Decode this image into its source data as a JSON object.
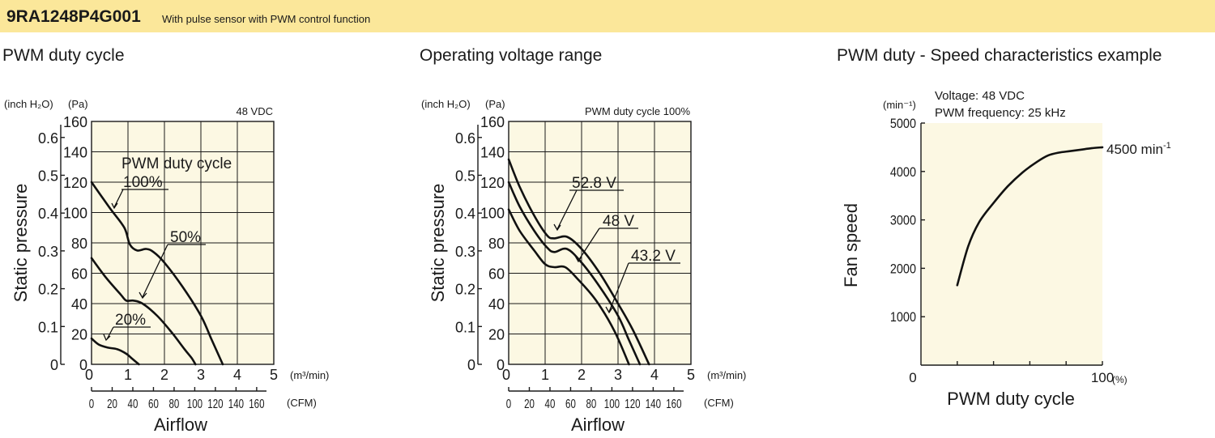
{
  "header": {
    "model": "9RA1248P4G001",
    "description": "With pulse sensor with PWM control function"
  },
  "chart_data": [
    {
      "type": "line",
      "title": "PWM duty cycle",
      "condition": "48 VDC",
      "xlabel": "Airflow",
      "x_unit": "(m³/min)",
      "x_unit_secondary": "(CFM)",
      "ylabel": "Static pressure",
      "y_unit": "(Pa)",
      "y_unit_secondary": "(inch H₂O)",
      "xlim": [
        0,
        5
      ],
      "ylim": [
        0,
        160
      ],
      "x_ticks": [
        "0",
        "1",
        "2",
        "3",
        "4",
        "5"
      ],
      "y_ticks": [
        "0",
        "20",
        "40",
        "60",
        "80",
        "100",
        "120",
        "140",
        "160"
      ],
      "secondary_x_ticks": [
        "0",
        "20",
        "40",
        "60",
        "80",
        "100",
        "120",
        "140",
        "160"
      ],
      "secondary_y_ticks": [
        "0",
        "0.1",
        "0.2",
        "0.3",
        "0.4",
        "0.5",
        "0.6"
      ],
      "legend_title": "PWM duty cycle",
      "series": [
        {
          "name": "100%",
          "x": [
            0,
            0.5,
            0.9,
            1.05,
            1.25,
            1.5,
            1.7,
            2.0,
            2.5,
            3.0,
            3.3,
            3.6
          ],
          "y": [
            120,
            103,
            90,
            79,
            75,
            76,
            74,
            67,
            51,
            32,
            16,
            0
          ]
        },
        {
          "name": "50%",
          "x": [
            0,
            0.4,
            0.8,
            0.95,
            1.15,
            1.4,
            1.8,
            2.2,
            2.55,
            2.75,
            2.85
          ],
          "y": [
            70,
            57,
            46,
            42,
            42,
            40,
            32,
            21,
            10,
            4,
            0
          ]
        },
        {
          "name": "20%",
          "x": [
            0,
            0.2,
            0.45,
            0.7,
            0.95,
            1.1,
            1.3
          ],
          "y": [
            17,
            13,
            11,
            10,
            7,
            4,
            0
          ]
        }
      ]
    },
    {
      "type": "line",
      "title": "Operating voltage range",
      "condition": "PWM duty cycle 100%",
      "xlabel": "Airflow",
      "x_unit": "(m³/min)",
      "x_unit_secondary": "(CFM)",
      "ylabel": "Static pressure",
      "y_unit": "(Pa)",
      "y_unit_secondary": "(inch H₂O)",
      "xlim": [
        0,
        5
      ],
      "ylim": [
        0,
        160
      ],
      "x_ticks": [
        "0",
        "1",
        "2",
        "3",
        "4",
        "5"
      ],
      "y_ticks": [
        "0",
        "20",
        "40",
        "60",
        "80",
        "100",
        "120",
        "140",
        "160"
      ],
      "secondary_x_ticks": [
        "0",
        "20",
        "40",
        "60",
        "80",
        "100",
        "120",
        "140",
        "160"
      ],
      "secondary_y_ticks": [
        "0",
        "0.1",
        "0.2",
        "0.3",
        "0.4",
        "0.5",
        "0.6"
      ],
      "series": [
        {
          "name": "52.8 V",
          "x": [
            0,
            0.3,
            0.7,
            1.05,
            1.25,
            1.6,
            2.0,
            2.5,
            3.0,
            3.4,
            3.85
          ],
          "y": [
            135,
            117,
            98,
            85,
            83,
            84,
            76,
            60,
            40,
            23,
            0
          ]
        },
        {
          "name": "48 V",
          "x": [
            0,
            0.3,
            0.7,
            1.05,
            1.25,
            1.6,
            2.0,
            2.5,
            3.0,
            3.3,
            3.6
          ],
          "y": [
            120,
            104,
            88,
            77,
            74,
            76,
            67,
            51,
            32,
            16,
            0
          ]
        },
        {
          "name": "43.2 V",
          "x": [
            0,
            0.3,
            0.7,
            1.0,
            1.25,
            1.55,
            1.9,
            2.4,
            2.9,
            3.3
          ],
          "y": [
            102,
            88,
            75,
            66,
            64,
            64,
            56,
            42,
            22,
            0
          ]
        }
      ]
    },
    {
      "type": "line",
      "title": "PWM duty - Speed characteristics example",
      "condition": [
        "Voltage: 48 VDC",
        "PWM frequency: 25 kHz"
      ],
      "xlabel": "PWM duty cycle",
      "x_unit": "(%)",
      "ylabel": "Fan speed",
      "y_unit": "(min⁻¹)",
      "xlim": [
        0,
        100
      ],
      "ylim": [
        0,
        5000
      ],
      "x_ticks": [
        "0",
        "100"
      ],
      "y_ticks": [
        "1000",
        "2000",
        "3000",
        "4000",
        "5000"
      ],
      "series": [
        {
          "name": "",
          "x": [
            20,
            26,
            32,
            40,
            48,
            56,
            64,
            70,
            76,
            82,
            88,
            94,
            100
          ],
          "y": [
            1650,
            2450,
            2950,
            3350,
            3700,
            3980,
            4200,
            4330,
            4390,
            4420,
            4450,
            4480,
            4500
          ]
        }
      ],
      "end_label": "4500 min",
      "end_label_sup": "-1"
    }
  ]
}
